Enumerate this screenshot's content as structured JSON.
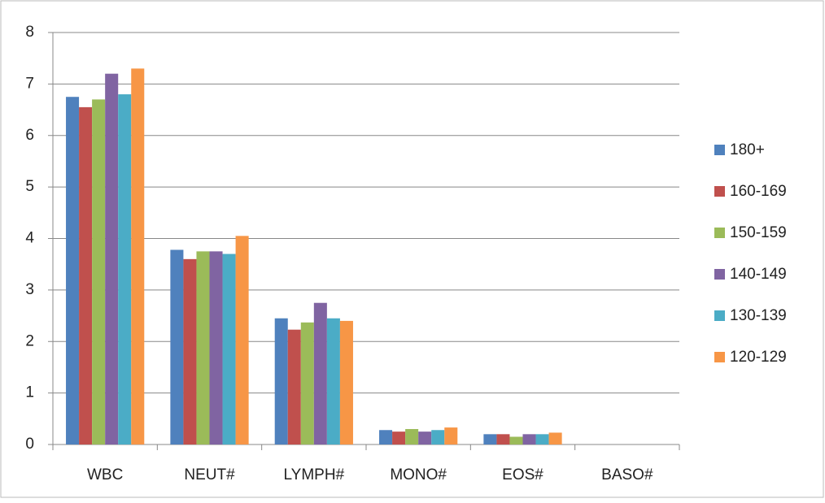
{
  "chart_data": {
    "type": "bar",
    "categories": [
      "WBC",
      "NEUT#",
      "LYMPH#",
      "MONO#",
      "EOS#",
      "BASO#"
    ],
    "series": [
      {
        "name": "180+",
        "color": "#4f81bd",
        "values": [
          6.75,
          3.78,
          2.45,
          0.28,
          0.2,
          0
        ]
      },
      {
        "name": "160-169",
        "color": "#c0504d",
        "values": [
          6.55,
          3.6,
          2.23,
          0.25,
          0.2,
          0
        ]
      },
      {
        "name": "150-159",
        "color": "#9bbb59",
        "values": [
          6.7,
          3.75,
          2.37,
          0.3,
          0.15,
          0
        ]
      },
      {
        "name": "140-149",
        "color": "#8064a2",
        "values": [
          7.2,
          3.75,
          2.75,
          0.25,
          0.2,
          0
        ]
      },
      {
        "name": "130-139",
        "color": "#4bacc6",
        "values": [
          6.8,
          3.7,
          2.45,
          0.28,
          0.2,
          0
        ]
      },
      {
        "name": "120-129",
        "color": "#f79646",
        "values": [
          7.3,
          4.05,
          2.4,
          0.33,
          0.23,
          0
        ]
      }
    ],
    "ylim": [
      0,
      8
    ],
    "yticks": [
      0,
      1,
      2,
      3,
      4,
      5,
      6,
      7,
      8
    ],
    "grid": true,
    "legend": "right"
  }
}
